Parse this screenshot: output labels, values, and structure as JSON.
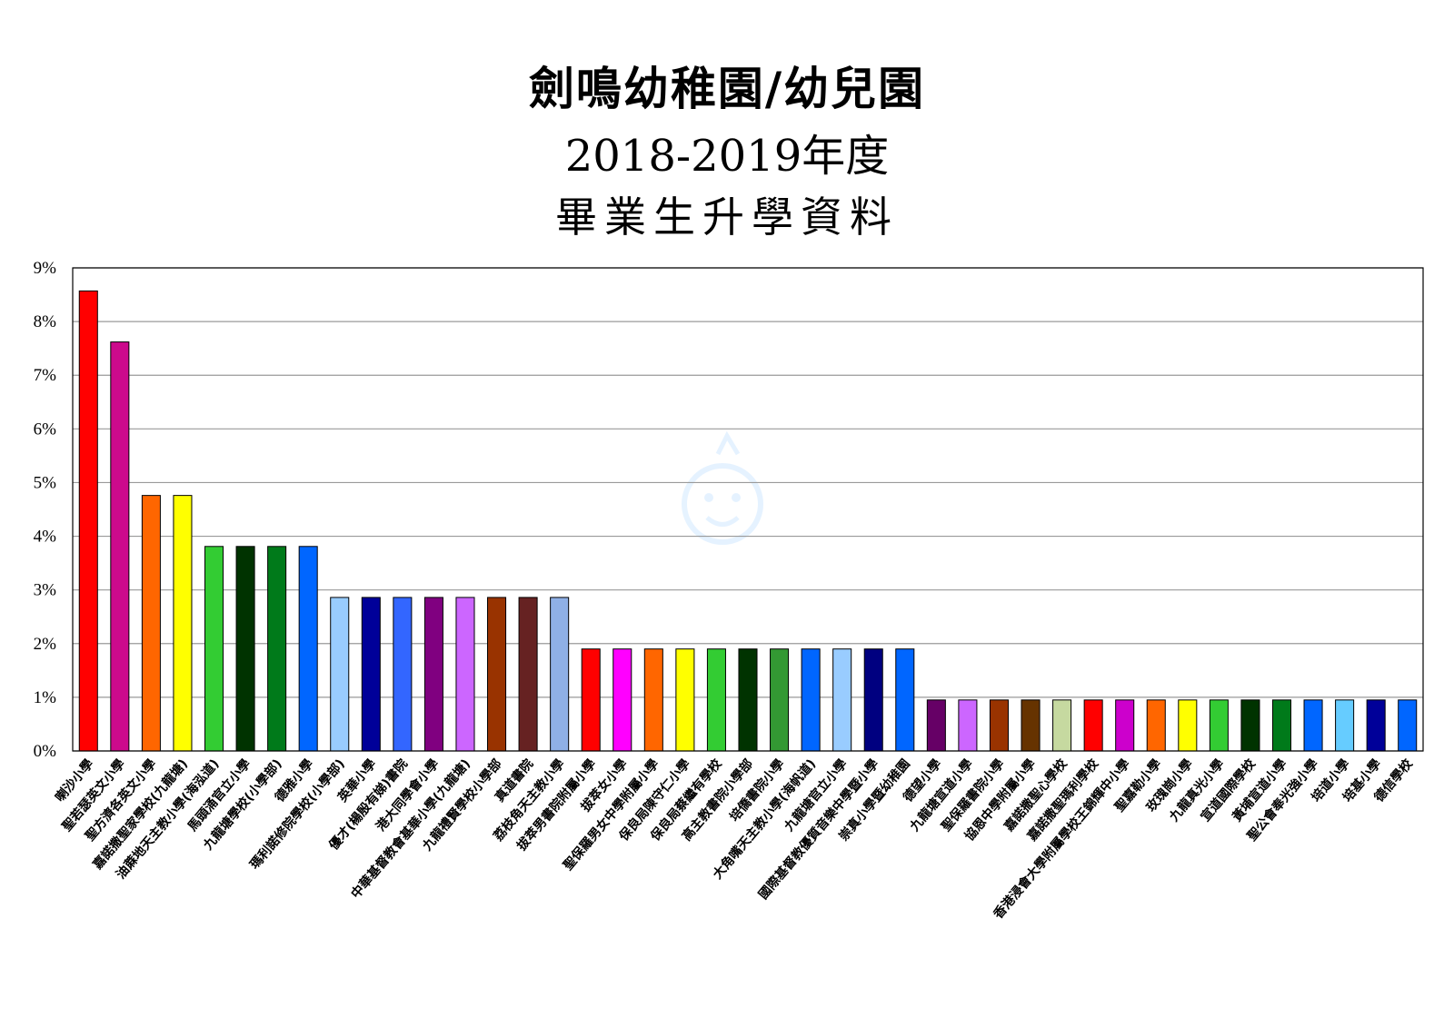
{
  "chart_data": {
    "type": "bar",
    "title": "劍鳴幼稚園/幼兒園",
    "subtitle": "2018-2019年度",
    "subtitle2": "畢業生升學資料",
    "xlabel": "",
    "ylabel": "",
    "ylim": [
      0,
      9
    ],
    "y_tick_labels": [
      "0%",
      "1%",
      "2%",
      "3%",
      "4%",
      "5%",
      "6%",
      "7%",
      "8%",
      "9%"
    ],
    "grid": true,
    "legend": "none",
    "categories": [
      "喇沙小學",
      "聖若瑟英文小學",
      "聖方濟各英文小學",
      "嘉諾撒聖家學校(九龍塘)",
      "油蔴地天主教小學(海泓道)",
      "馬頭涌官立小學",
      "九龍塘學校(小學部)",
      "德雅小學",
      "瑪利諾修院學校(小學部)",
      "英華小學",
      "優才(楊殷有娣)書院",
      "港大同學會小學",
      "中華基督教會基華小學(九龍塘)",
      "九龍禮賢學校小學部",
      "真道書院",
      "荔枝角天主教小學",
      "拔萃男書院附屬小學",
      "拔萃女小學",
      "聖保羅男女中學附屬小學",
      "保良局陳守仁小學",
      "保良局蔡繼有學校",
      "高主教書院小學部",
      "培僑書院小學",
      "大角嘴天主教小學(海帆道)",
      "九龍塘官立小學",
      "國際基督教優質音樂中學暨小學",
      "崇真小學暨幼稚園",
      "德望小學",
      "九龍塘宣道小學",
      "聖保羅書院小學",
      "協恩中學附屬小學",
      "嘉諾撒聖心學校",
      "嘉諾撒聖瑪利學校",
      "香港浸會大學附屬學校王錦輝中小學",
      "聖嘉勒小學",
      "玫瑰崗小學",
      "九龍真光小學",
      "宣道國際學校",
      "黃埔宣道小學",
      "聖公會奉光強小學",
      "培道小學",
      "培基小學",
      "德信學校"
    ],
    "values": [
      8.57,
      7.62,
      4.76,
      4.76,
      3.81,
      3.81,
      3.81,
      3.81,
      2.86,
      2.86,
      2.86,
      2.86,
      2.86,
      2.86,
      2.86,
      2.86,
      1.9,
      1.9,
      1.9,
      1.9,
      1.9,
      1.9,
      1.9,
      1.9,
      1.9,
      1.9,
      1.9,
      0.95,
      0.95,
      0.95,
      0.95,
      0.95,
      0.95,
      0.95,
      0.95,
      0.95,
      0.95,
      0.95,
      0.95,
      0.95,
      0.95,
      0.95,
      0.95
    ],
    "colors": [
      "#ff0000",
      "#cc0a8c",
      "#ff6600",
      "#ffff00",
      "#33cc33",
      "#003300",
      "#007a1a",
      "#0066ff",
      "#99ccff",
      "#000099",
      "#3366ff",
      "#800080",
      "#cc66ff",
      "#993300",
      "#662222",
      "#8fb0e6",
      "#ff0000",
      "#ff00ff",
      "#ff6600",
      "#ffff00",
      "#33cc33",
      "#003300",
      "#339933",
      "#0066ff",
      "#99ccff",
      "#000080",
      "#0066ff",
      "#660066",
      "#cc66ff",
      "#993300",
      "#663300",
      "#c6d9a0",
      "#ff0000",
      "#cc00cc",
      "#ff6600",
      "#ffff00",
      "#33cc33",
      "#003300",
      "#007a1a",
      "#0066ff",
      "#66ccff",
      "#000099",
      "#0066ff"
    ]
  }
}
